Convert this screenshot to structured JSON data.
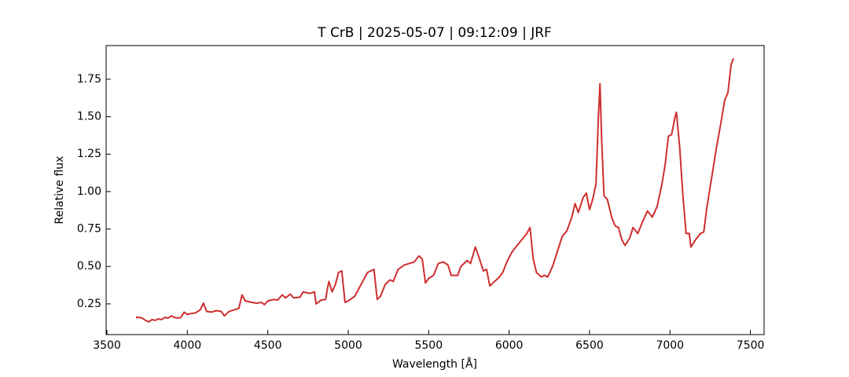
{
  "chart_data": {
    "type": "line",
    "title": "T CrB | 2025-05-07 | 09:12:09 | JRF",
    "x_label": "Wavelength [Å]",
    "y_label": "Relative flux",
    "xlim": [
      3495,
      7585
    ],
    "ylim": [
      0.045,
      1.975
    ],
    "xticks": [
      3500,
      4000,
      4500,
      5000,
      5500,
      6000,
      6500,
      7000,
      7500
    ],
    "yticks": [
      0.25,
      {
        "value": 0.5,
        "label": "0.50"
      },
      0.75,
      {
        "value": 1,
        "label": "1.00"
      },
      1.25,
      {
        "value": 1.5,
        "label": "1.50"
      },
      1.75
    ],
    "x": [
      3680,
      3700,
      3720,
      3740,
      3760,
      3780,
      3800,
      3820,
      3840,
      3860,
      3880,
      3900,
      3920,
      3940,
      3960,
      3980,
      4000,
      4020,
      4050,
      4080,
      4100,
      4120,
      4150,
      4180,
      4210,
      4230,
      4260,
      4290,
      4320,
      4340,
      4360,
      4400,
      4430,
      4460,
      4480,
      4500,
      4540,
      4560,
      4590,
      4610,
      4640,
      4660,
      4700,
      4720,
      4760,
      4790,
      4800,
      4830,
      4860,
      4870,
      4880,
      4900,
      4920,
      4940,
      4960,
      4980,
      5000,
      5040,
      5080,
      5120,
      5160,
      5180,
      5200,
      5230,
      5260,
      5280,
      5310,
      5350,
      5380,
      5410,
      5440,
      5460,
      5480,
      5500,
      5530,
      5560,
      5590,
      5620,
      5640,
      5680,
      5700,
      5740,
      5760,
      5790,
      5810,
      5840,
      5860,
      5880,
      5910,
      5940,
      5960,
      5990,
      6020,
      6050,
      6080,
      6110,
      6130,
      6150,
      6170,
      6200,
      6220,
      6240,
      6270,
      6300,
      6330,
      6360,
      6390,
      6410,
      6430,
      6460,
      6480,
      6500,
      6520,
      6540,
      6555,
      6565,
      6575,
      6590,
      6610,
      6640,
      6660,
      6680,
      6700,
      6720,
      6750,
      6770,
      6800,
      6830,
      6860,
      6890,
      6920,
      6950,
      6970,
      6990,
      7010,
      7030,
      7040,
      7060,
      7080,
      7100,
      7120,
      7130,
      7160,
      7190,
      7210,
      7230,
      7260,
      7290,
      7320,
      7340,
      7360,
      7380,
      7395
    ],
    "series": [
      {
        "name": "T CrB",
        "color": "#cf2e2e",
        "values": [
          0.16,
          0.16,
          0.155,
          0.14,
          0.13,
          0.145,
          0.14,
          0.15,
          0.145,
          0.16,
          0.155,
          0.17,
          0.16,
          0.155,
          0.16,
          0.195,
          0.18,
          0.185,
          0.19,
          0.21,
          0.255,
          0.2,
          0.195,
          0.205,
          0.2,
          0.17,
          0.2,
          0.21,
          0.22,
          0.31,
          0.27,
          0.26,
          0.255,
          0.26,
          0.245,
          0.27,
          0.28,
          0.275,
          0.31,
          0.29,
          0.315,
          0.29,
          0.295,
          0.33,
          0.32,
          0.33,
          0.25,
          0.275,
          0.28,
          0.35,
          0.4,
          0.33,
          0.38,
          0.46,
          0.47,
          0.26,
          0.27,
          0.3,
          0.38,
          0.46,
          0.48,
          0.28,
          0.3,
          0.38,
          0.41,
          0.4,
          0.48,
          0.51,
          0.52,
          0.53,
          0.57,
          0.55,
          0.39,
          0.42,
          0.44,
          0.52,
          0.53,
          0.51,
          0.44,
          0.44,
          0.5,
          0.54,
          0.52,
          0.63,
          0.57,
          0.47,
          0.48,
          0.37,
          0.4,
          0.43,
          0.46,
          0.54,
          0.6,
          0.64,
          0.68,
          0.72,
          0.76,
          0.55,
          0.46,
          0.43,
          0.44,
          0.43,
          0.5,
          0.6,
          0.7,
          0.74,
          0.83,
          0.92,
          0.86,
          0.96,
          0.99,
          0.88,
          0.95,
          1.05,
          1.5,
          1.72,
          1.35,
          0.97,
          0.95,
          0.82,
          0.77,
          0.76,
          0.68,
          0.64,
          0.69,
          0.76,
          0.72,
          0.8,
          0.87,
          0.83,
          0.9,
          1.05,
          1.18,
          1.37,
          1.38,
          1.49,
          1.53,
          1.3,
          0.98,
          0.72,
          0.72,
          0.63,
          0.68,
          0.72,
          0.73,
          0.9,
          1.1,
          1.3,
          1.48,
          1.61,
          1.66,
          1.85,
          1.89
        ]
      }
    ]
  }
}
